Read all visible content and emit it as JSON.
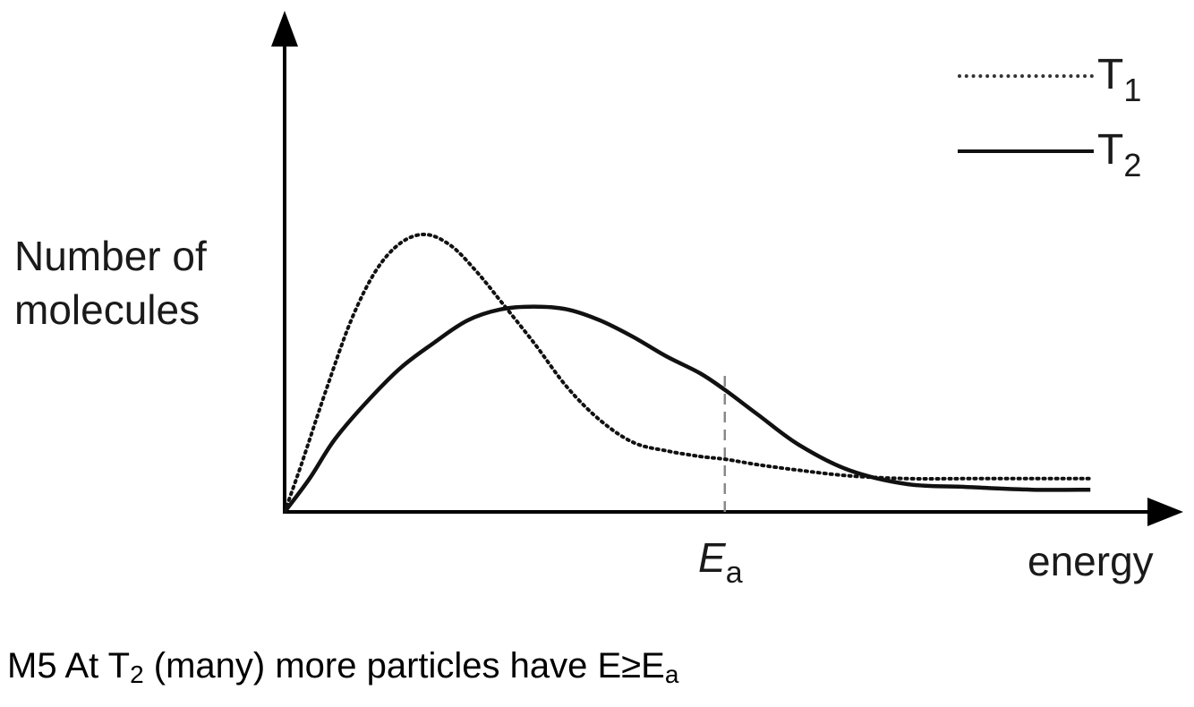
{
  "chart_data": {
    "type": "line",
    "ylabel_lines": [
      "Number of",
      "molecules"
    ],
    "xlabel": "energy",
    "marker": {
      "symbol": "E",
      "subscript": "a",
      "x": 0.53
    },
    "xlim": [
      0,
      1
    ],
    "ylim": [
      0,
      1
    ],
    "legend_position": "top-right",
    "series": [
      {
        "name": "T",
        "subscript": "1",
        "style": "dotted",
        "x": [
          0.0,
          0.02,
          0.05,
          0.08,
          0.11,
          0.14,
          0.17,
          0.2,
          0.23,
          0.26,
          0.3,
          0.34,
          0.38,
          0.42,
          0.46,
          0.5,
          0.53,
          0.57,
          0.62,
          0.68,
          0.75,
          0.82,
          0.9,
          0.97
        ],
        "y": [
          0.0,
          0.17,
          0.44,
          0.69,
          0.87,
          0.97,
          1.0,
          0.96,
          0.87,
          0.76,
          0.61,
          0.45,
          0.33,
          0.25,
          0.22,
          0.2,
          0.19,
          0.17,
          0.15,
          0.13,
          0.12,
          0.12,
          0.12,
          0.12
        ]
      },
      {
        "name": "T",
        "subscript": "2",
        "style": "solid",
        "x": [
          0.0,
          0.03,
          0.06,
          0.1,
          0.14,
          0.18,
          0.22,
          0.26,
          0.3,
          0.34,
          0.38,
          0.42,
          0.46,
          0.5,
          0.53,
          0.57,
          0.62,
          0.68,
          0.75,
          0.82,
          0.9,
          0.97
        ],
        "y": [
          0.0,
          0.12,
          0.26,
          0.4,
          0.52,
          0.61,
          0.69,
          0.73,
          0.74,
          0.73,
          0.69,
          0.63,
          0.56,
          0.5,
          0.44,
          0.35,
          0.24,
          0.15,
          0.1,
          0.09,
          0.08,
          0.08
        ]
      }
    ]
  },
  "legend": [
    {
      "name": "T",
      "subscript": "1"
    },
    {
      "name": "T",
      "subscript": "2"
    }
  ],
  "caption": {
    "prefix": "M5 At T",
    "sub1": "2",
    "middle": " (many) more particles have E≥E",
    "sub2": "a"
  },
  "colors": {
    "line": "#111111",
    "dashed_marker": "#888888",
    "text": "#1a1a1a"
  }
}
